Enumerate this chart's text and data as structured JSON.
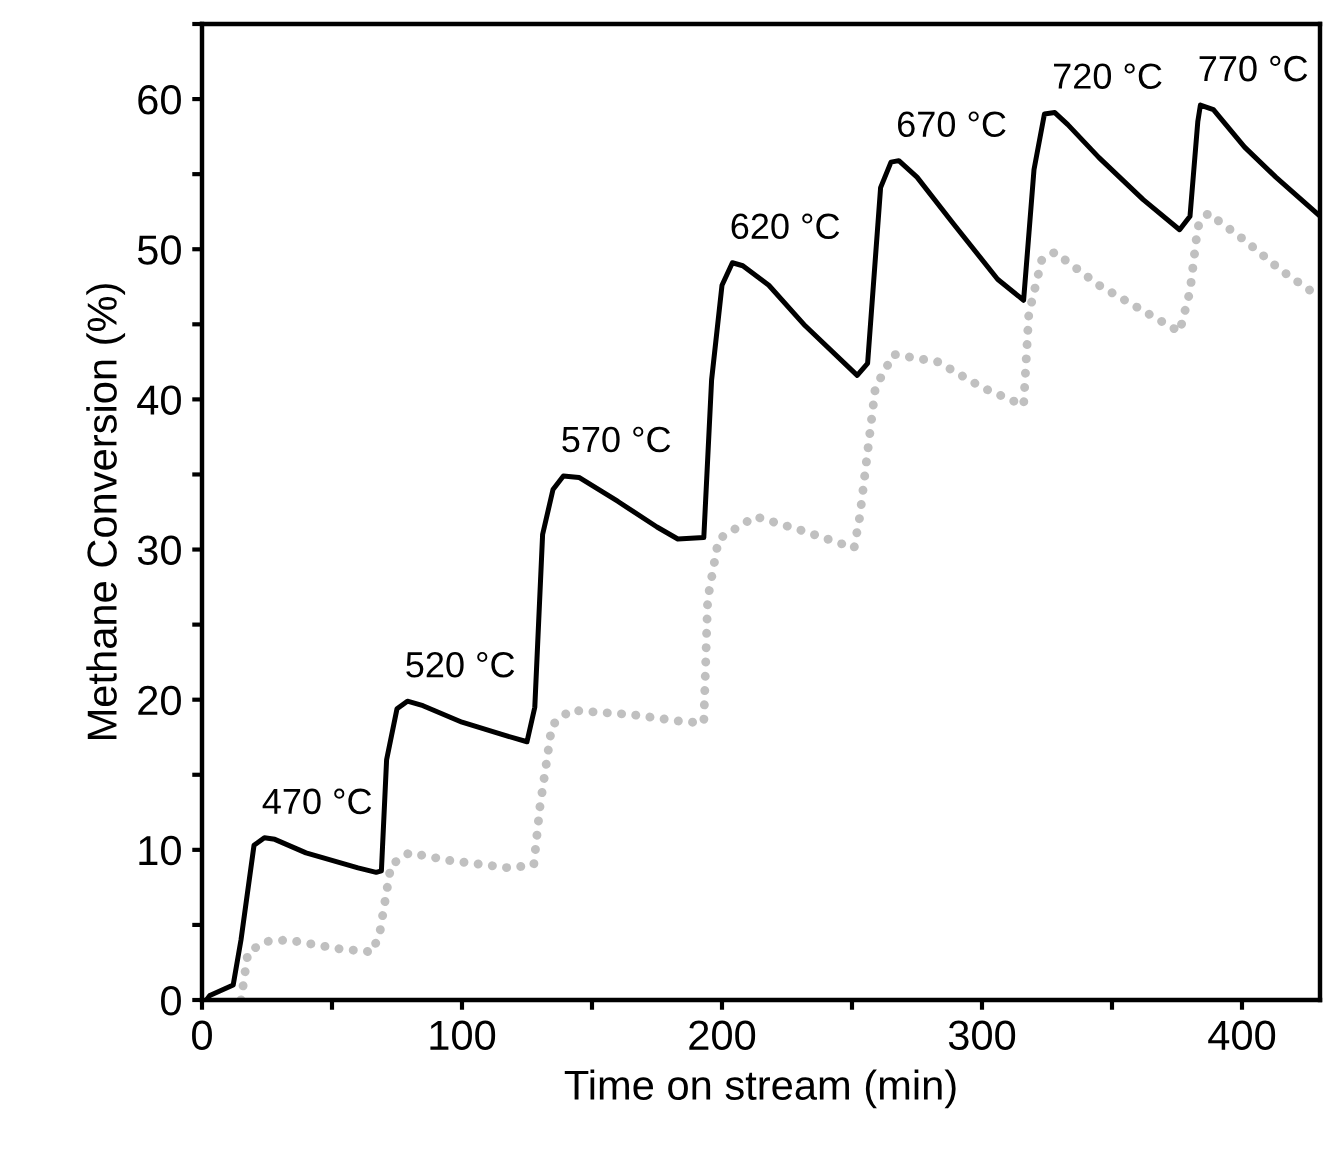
{
  "chart_data": {
    "type": "line",
    "xlabel": "Time on stream (min)",
    "ylabel": "Methane Conversion (%)",
    "xlim": [
      0,
      430
    ],
    "ylim": [
      0,
      65
    ],
    "xticks": [
      0,
      {
        "value": 50,
        "label": null
      },
      100,
      {
        "value": 150,
        "label": null
      },
      200,
      {
        "value": 250,
        "label": null
      },
      300,
      {
        "value": 350,
        "label": null
      },
      400
    ],
    "yticks": [
      0,
      {
        "value": 5,
        "label": null
      },
      10,
      {
        "value": 15,
        "label": null
      },
      20,
      {
        "value": 25,
        "label": null
      },
      30,
      {
        "value": 35,
        "label": null
      },
      40,
      {
        "value": 45,
        "label": null
      },
      50,
      {
        "value": 55,
        "label": null
      },
      60,
      {
        "value": 65,
        "label": null
      }
    ],
    "grid": false,
    "legend": false,
    "marker": "none",
    "series": [
      {
        "color": "#000000",
        "line_style": "solid",
        "x": [
          1.7,
          3,
          12,
          15,
          20,
          24,
          28,
          40,
          50,
          60,
          67,
          69,
          71,
          75,
          79,
          85,
          100,
          115,
          125,
          128,
          131,
          135,
          139,
          145,
          160,
          175,
          183,
          193,
          196,
          200,
          204,
          208,
          218,
          232,
          252,
          256,
          261,
          265,
          268,
          275,
          289,
          306,
          316,
          320,
          324,
          328,
          333,
          345,
          362,
          376,
          380,
          383,
          384,
          389,
          401,
          413,
          430
        ],
        "values": [
          0,
          0.3,
          1,
          4,
          10.3,
          10.8,
          10.7,
          9.8,
          9.3,
          8.8,
          8.5,
          8.6,
          16,
          19.4,
          19.9,
          19.6,
          18.5,
          17.7,
          17.2,
          19.5,
          31,
          34,
          34.9,
          34.8,
          33.2,
          31.5,
          30.7,
          30.8,
          41.3,
          47.6,
          49.1,
          48.9,
          47.6,
          44.9,
          41.6,
          42.4,
          54.1,
          55.8,
          55.9,
          54.8,
          51.7,
          48,
          46.6,
          55.3,
          59,
          59.1,
          58.3,
          56.1,
          53.3,
          51.3,
          52.2,
          58.5,
          59.6,
          59.3,
          56.8,
          54.8,
          52.2
        ]
      },
      {
        "color": "#c0c0c0",
        "line_style": "dotted",
        "x": [
          15,
          17.7,
          24.8,
          33,
          53,
          65.6,
          68.5,
          72.7,
          79.7,
          95,
          118,
          127.6,
          130,
          134.6,
          141.7,
          165.6,
          186.8,
          193,
          194.5,
          198.7,
          212.8,
          232,
          250.8,
          253,
          259,
          266,
          283,
          300,
          316,
          318,
          323,
          328,
          345,
          376,
          380,
          383,
          387,
          401,
          415,
          430
        ],
        "values": [
          0,
          3.2,
          3.9,
          4,
          3.4,
          3.2,
          4.6,
          9,
          9.8,
          9.3,
          8.8,
          9,
          12.9,
          18.3,
          19.3,
          19,
          18.5,
          18.5,
          26.7,
          30.7,
          32.2,
          31.2,
          30.1,
          32.2,
          40.8,
          43,
          42.5,
          40.8,
          39.6,
          45.7,
          49.3,
          49.8,
          47.6,
          44.5,
          47.2,
          51.5,
          52.4,
          50.6,
          48.6,
          46.8
        ]
      }
    ],
    "annotations": [
      "470 °C",
      "520 °C",
      "570 °C",
      "620 °C",
      "670 °C",
      "720 °C",
      "770 °C"
    ]
  }
}
